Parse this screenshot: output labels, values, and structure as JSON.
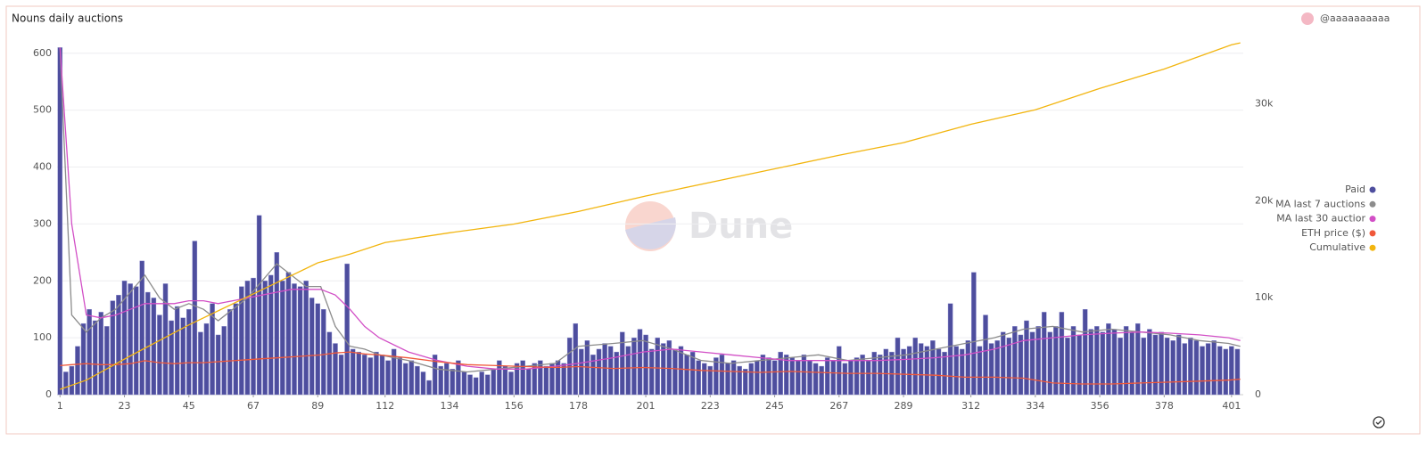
{
  "chart_data": {
    "type": "combo",
    "title": "Nouns daily auctions",
    "user": "@aaaaaaaaaa",
    "watermark": "Dune",
    "xlim": [
      0,
      405
    ],
    "xticks": [
      1,
      23,
      45,
      67,
      89,
      112,
      134,
      156,
      178,
      201,
      223,
      245,
      267,
      289,
      312,
      334,
      356,
      378,
      401
    ],
    "ylim": [
      0,
      620
    ],
    "yticks": [
      0,
      100,
      200,
      300,
      400,
      500,
      600
    ],
    "y2lim": [
      0,
      36400
    ],
    "y2ticks": [
      0,
      {
        "value": 10000,
        "label": "10k"
      },
      {
        "value": 20000,
        "label": "20k"
      },
      {
        "value": 30000,
        "label": "30k"
      }
    ],
    "grid": true,
    "legend": "right",
    "series": [
      {
        "name": "Paid",
        "type": "bar",
        "color": "#4e4e9e",
        "x": [
          1,
          3,
          5,
          7,
          9,
          11,
          13,
          15,
          17,
          19,
          21,
          23,
          25,
          27,
          29,
          31,
          33,
          35,
          37,
          39,
          41,
          43,
          45,
          47,
          49,
          51,
          53,
          55,
          57,
          59,
          61,
          63,
          65,
          67,
          69,
          71,
          73,
          75,
          77,
          79,
          81,
          83,
          85,
          87,
          89,
          91,
          93,
          95,
          97,
          99,
          101,
          103,
          105,
          107,
          109,
          111,
          113,
          115,
          117,
          119,
          121,
          123,
          125,
          127,
          129,
          131,
          133,
          135,
          137,
          139,
          141,
          143,
          145,
          147,
          149,
          151,
          153,
          155,
          157,
          159,
          161,
          163,
          165,
          167,
          169,
          171,
          173,
          175,
          177,
          179,
          181,
          183,
          185,
          187,
          189,
          191,
          193,
          195,
          197,
          199,
          201,
          203,
          205,
          207,
          209,
          211,
          213,
          215,
          217,
          219,
          221,
          223,
          225,
          227,
          229,
          231,
          233,
          235,
          237,
          239,
          241,
          243,
          245,
          247,
          249,
          251,
          253,
          255,
          257,
          259,
          261,
          263,
          265,
          267,
          269,
          271,
          273,
          275,
          277,
          279,
          281,
          283,
          285,
          287,
          289,
          291,
          293,
          295,
          297,
          299,
          301,
          303,
          305,
          307,
          309,
          311,
          313,
          315,
          317,
          319,
          321,
          323,
          325,
          327,
          329,
          331,
          333,
          335,
          337,
          339,
          341,
          343,
          345,
          347,
          349,
          351,
          353,
          355,
          357,
          359,
          361,
          363,
          365,
          367,
          369,
          371,
          373,
          375,
          377,
          379,
          381,
          383,
          385,
          387,
          389,
          391,
          393,
          395,
          397,
          399,
          401,
          403
        ],
        "values": [
          610,
          40,
          50,
          85,
          125,
          150,
          130,
          145,
          120,
          165,
          175,
          200,
          195,
          190,
          235,
          180,
          170,
          140,
          195,
          130,
          155,
          135,
          150,
          270,
          110,
          125,
          160,
          105,
          120,
          150,
          160,
          190,
          200,
          205,
          315,
          200,
          210,
          250,
          200,
          215,
          195,
          190,
          200,
          170,
          160,
          150,
          110,
          90,
          70,
          230,
          80,
          75,
          70,
          65,
          75,
          70,
          60,
          80,
          65,
          55,
          60,
          50,
          40,
          25,
          70,
          50,
          55,
          45,
          60,
          40,
          35,
          30,
          40,
          35,
          45,
          60,
          50,
          40,
          55,
          60,
          45,
          55,
          60,
          50,
          55,
          60,
          55,
          100,
          125,
          80,
          95,
          70,
          80,
          90,
          85,
          75,
          110,
          85,
          100,
          115,
          105,
          80,
          100,
          90,
          95,
          80,
          85,
          70,
          75,
          60,
          55,
          50,
          65,
          70,
          55,
          60,
          50,
          45,
          55,
          60,
          70,
          65,
          60,
          75,
          70,
          65,
          60,
          70,
          60,
          55,
          50,
          65,
          60,
          85,
          55,
          60,
          65,
          70,
          60,
          75,
          70,
          80,
          75,
          100,
          80,
          85,
          100,
          90,
          85,
          95,
          80,
          75,
          160,
          85,
          80,
          95,
          215,
          85,
          140,
          90,
          95,
          110,
          100,
          120,
          105,
          130,
          110,
          120,
          145,
          110,
          120,
          145,
          100,
          120,
          105,
          150,
          115,
          120,
          110,
          125,
          115,
          100,
          120,
          110,
          125,
          100,
          115,
          105,
          110,
          100,
          95,
          105,
          90,
          100,
          95,
          85,
          90,
          95,
          85,
          80,
          85,
          80
        ]
      },
      {
        "name": "MA last 7 auctions",
        "type": "line",
        "color": "#8c8c8c",
        "x": [
          1,
          5,
          10,
          15,
          20,
          25,
          30,
          35,
          40,
          45,
          50,
          55,
          60,
          65,
          70,
          75,
          80,
          85,
          90,
          95,
          100,
          105,
          110,
          120,
          130,
          140,
          150,
          160,
          170,
          178,
          190,
          200,
          210,
          220,
          230,
          240,
          250,
          260,
          270,
          280,
          290,
          300,
          310,
          320,
          330,
          340,
          350,
          360,
          370,
          380,
          390,
          400,
          404
        ],
        "values": [
          610,
          140,
          110,
          135,
          150,
          180,
          210,
          170,
          150,
          160,
          150,
          130,
          150,
          170,
          200,
          230,
          210,
          190,
          190,
          120,
          85,
          80,
          70,
          60,
          45,
          40,
          45,
          50,
          55,
          85,
          90,
          95,
          80,
          60,
          55,
          60,
          65,
          70,
          60,
          65,
          70,
          80,
          90,
          100,
          115,
          120,
          110,
          115,
          110,
          105,
          95,
          90,
          85
        ]
      },
      {
        "name": "MA last 30 auctior",
        "type": "line",
        "color": "#d24fc6",
        "x": [
          1,
          5,
          10,
          15,
          20,
          25,
          30,
          35,
          40,
          45,
          50,
          55,
          60,
          65,
          70,
          75,
          80,
          85,
          90,
          95,
          100,
          105,
          110,
          120,
          130,
          140,
          150,
          160,
          170,
          178,
          190,
          200,
          210,
          220,
          230,
          240,
          250,
          260,
          270,
          280,
          290,
          300,
          310,
          320,
          330,
          340,
          350,
          360,
          370,
          380,
          390,
          400,
          404
        ],
        "values": [
          610,
          300,
          140,
          135,
          140,
          150,
          160,
          160,
          160,
          165,
          165,
          160,
          165,
          170,
          175,
          180,
          185,
          185,
          185,
          175,
          150,
          120,
          100,
          75,
          60,
          50,
          45,
          45,
          50,
          55,
          65,
          75,
          80,
          75,
          70,
          65,
          60,
          60,
          60,
          60,
          62,
          65,
          70,
          80,
          95,
          100,
          105,
          108,
          110,
          108,
          105,
          100,
          95
        ]
      },
      {
        "name": "ETH price ($)",
        "type": "line",
        "axis": "y2",
        "color": "#f0583a",
        "x": [
          1,
          5,
          10,
          15,
          20,
          25,
          30,
          35,
          40,
          45,
          50,
          55,
          60,
          65,
          70,
          75,
          80,
          85,
          90,
          95,
          100,
          105,
          110,
          120,
          130,
          140,
          150,
          160,
          170,
          178,
          190,
          200,
          210,
          220,
          230,
          240,
          250,
          260,
          270,
          280,
          290,
          300,
          310,
          320,
          330,
          340,
          350,
          360,
          370,
          380,
          390,
          400,
          404
        ],
        "values": [
          3000,
          3100,
          3200,
          3100,
          3100,
          3200,
          3500,
          3300,
          3200,
          3300,
          3300,
          3400,
          3500,
          3600,
          3700,
          3800,
          3900,
          4000,
          4100,
          4300,
          4400,
          4200,
          4100,
          3800,
          3400,
          3100,
          3000,
          2900,
          2800,
          2900,
          2700,
          2800,
          2700,
          2500,
          2400,
          2300,
          2400,
          2300,
          2200,
          2200,
          2100,
          2000,
          1800,
          1800,
          1700,
          1200,
          1100,
          1100,
          1200,
          1300,
          1400,
          1500,
          1600
        ]
      },
      {
        "name": "Cumulative",
        "type": "line",
        "axis": "y2",
        "color": "#f2b50f",
        "x": [
          1,
          10,
          25,
          45,
          67,
          89,
          100,
          112,
          134,
          156,
          178,
          201,
          223,
          245,
          267,
          289,
          312,
          334,
          356,
          378,
          401,
          404
        ],
        "values": [
          550,
          1500,
          4000,
          7200,
          10400,
          13600,
          14500,
          15700,
          16700,
          17600,
          18900,
          20500,
          21900,
          23300,
          24700,
          26000,
          27900,
          29400,
          31600,
          33600,
          36100,
          36300
        ]
      }
    ]
  }
}
